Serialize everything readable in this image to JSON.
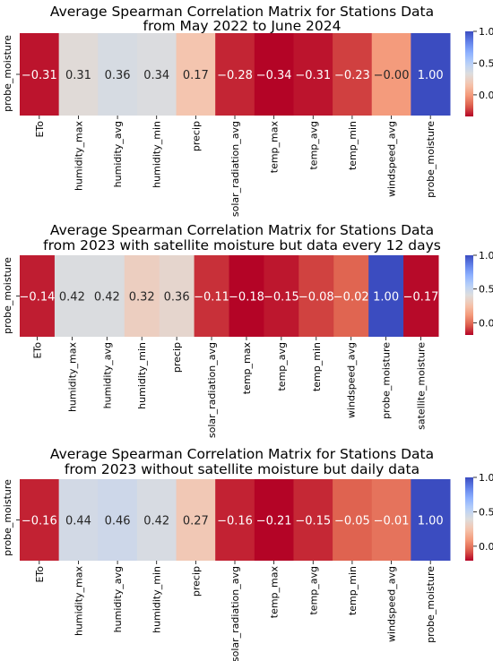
{
  "chart_data": [
    {
      "type": "heatmap",
      "title": "Average Spearman Correlation Matrix for Stations Data",
      "subtitle": "from May 2022 to June 2024",
      "ylabel": "probe_moisture",
      "x": [
        "ETo",
        "humidity_max",
        "humidity_avg",
        "humidity_min",
        "precip",
        "solar_radiation_avg",
        "temp_max",
        "temp_avg",
        "temp_min",
        "windspeed_avg",
        "probe_moisture"
      ],
      "values": [
        -0.31,
        0.31,
        0.36,
        0.34,
        0.17,
        -0.28,
        -0.34,
        -0.31,
        -0.23,
        -0.0,
        1.0
      ],
      "labels": [
        "−0.31",
        "0.31",
        "0.36",
        "0.34",
        "0.17",
        "−0.28",
        "−0.34",
        "−0.31",
        "−0.23",
        "−0.00",
        "1.00"
      ],
      "colorbar": {
        "range": [
          -0.34,
          1.0
        ],
        "ticks": [
          0.0,
          0.5,
          1.0
        ],
        "tick_labels": [
          "0.0",
          "0.5",
          "1.0"
        ],
        "cmap": "coolwarm_r"
      }
    },
    {
      "type": "heatmap",
      "title": "Average Spearman Correlation Matrix for Stations Data",
      "subtitle": "from 2023 with satellite moisture but data every 12 days",
      "ylabel": "probe_moisture",
      "x": [
        "ETo",
        "humidity_max",
        "humidity_avg",
        "humidity_min",
        "precip",
        "solar_radiation_avg",
        "temp_max",
        "temp_avg",
        "temp_min",
        "windspeed_avg",
        "probe_moisture",
        "satellite_moisture"
      ],
      "values": [
        -0.14,
        0.42,
        0.42,
        0.32,
        0.36,
        -0.11,
        -0.18,
        -0.15,
        -0.08,
        -0.02,
        1.0,
        -0.17
      ],
      "labels": [
        "−0.14",
        "0.42",
        "0.42",
        "0.32",
        "0.36",
        "−0.11",
        "−0.18",
        "−0.15",
        "−0.08",
        "−0.02",
        "1.00",
        "−0.17"
      ],
      "colorbar": {
        "range": [
          -0.18,
          1.0
        ],
        "ticks": [
          0.0,
          0.5,
          1.0
        ],
        "tick_labels": [
          "0.0",
          "0.5",
          "1.0"
        ],
        "cmap": "coolwarm_r"
      }
    },
    {
      "type": "heatmap",
      "title": "Average Spearman Correlation Matrix for Stations Data",
      "subtitle": "from 2023 without satellite moisture but daily data",
      "ylabel": "probe_moisture",
      "x": [
        "ETo",
        "humidity_max",
        "humidity_avg",
        "humidity_min",
        "precip",
        "solar_radiation_avg",
        "temp_max",
        "temp_avg",
        "temp_min",
        "windspeed_avg",
        "probe_moisture"
      ],
      "values": [
        -0.16,
        0.44,
        0.46,
        0.42,
        0.27,
        -0.16,
        -0.21,
        -0.15,
        -0.05,
        -0.01,
        1.0
      ],
      "labels": [
        "−0.16",
        "0.44",
        "0.46",
        "0.42",
        "0.27",
        "−0.16",
        "−0.21",
        "−0.15",
        "−0.05",
        "−0.01",
        "1.00"
      ],
      "colorbar": {
        "range": [
          -0.21,
          1.0
        ],
        "ticks": [
          0.0,
          0.5,
          1.0
        ],
        "tick_labels": [
          "0.0",
          "0.5",
          "1.0"
        ],
        "cmap": "coolwarm_r"
      }
    }
  ]
}
